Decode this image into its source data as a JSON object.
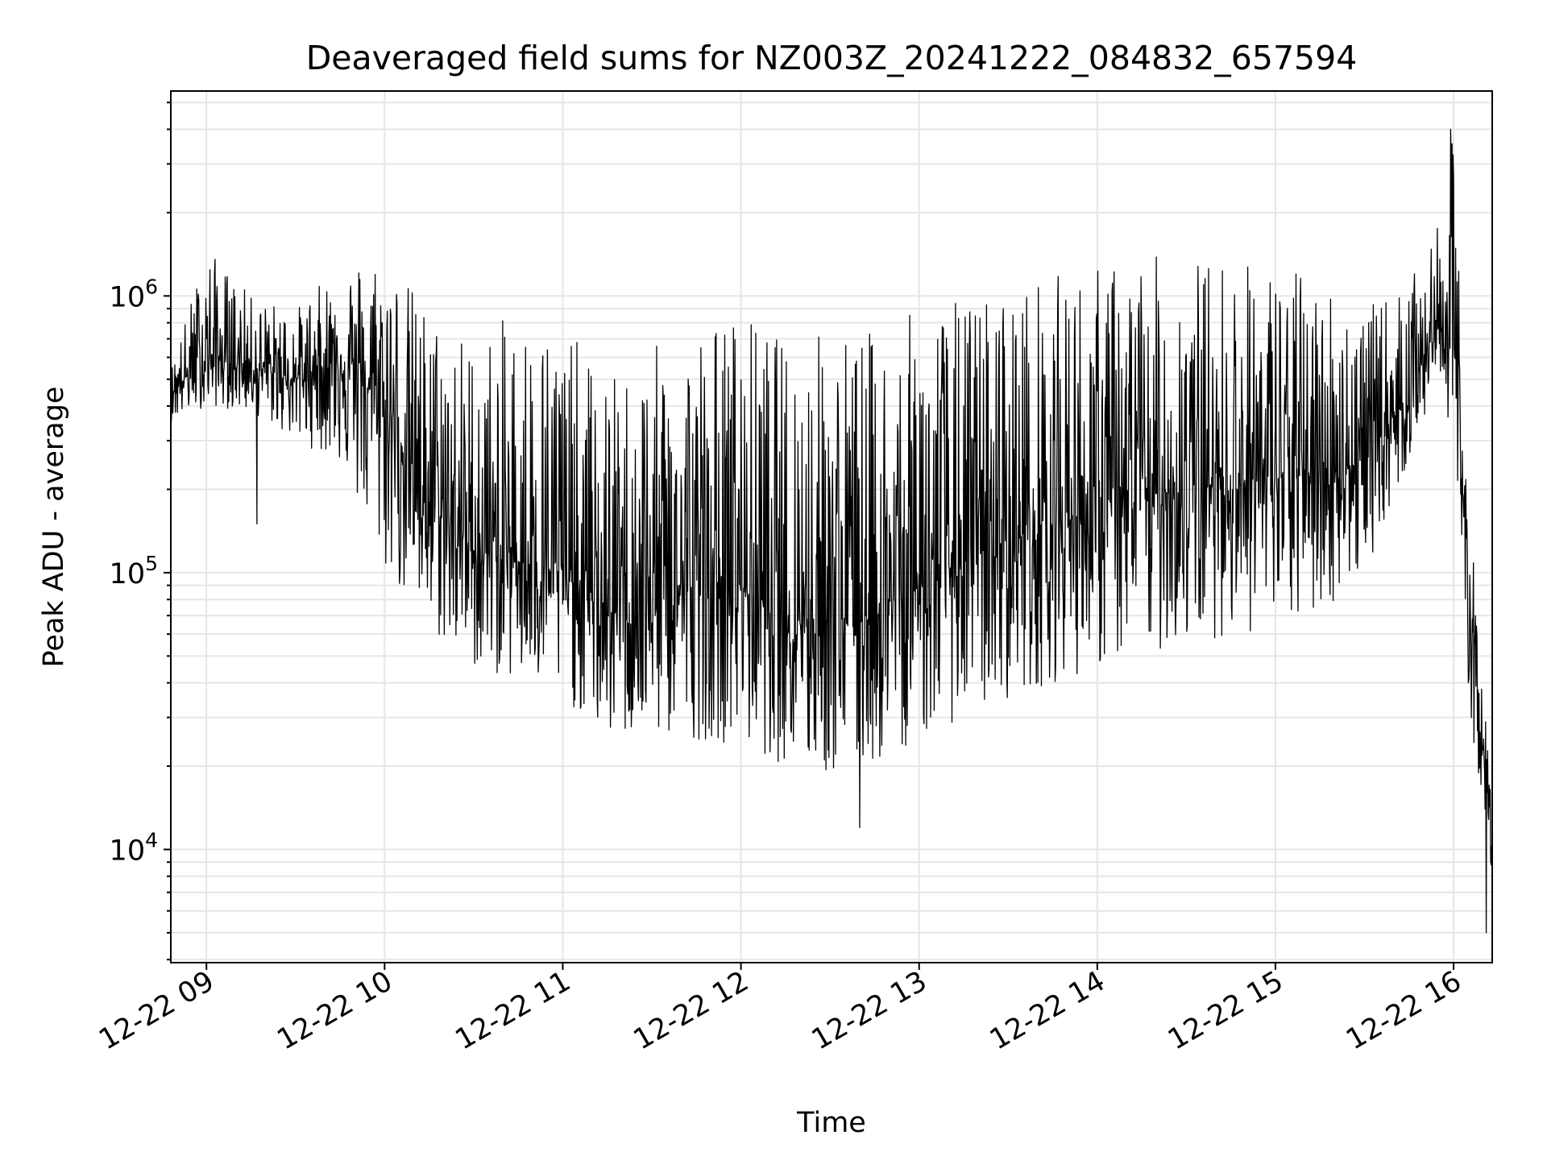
{
  "chart_data": {
    "type": "line",
    "title": "Deaveraged field sums for NZ003Z_20241222_084832_657594",
    "xlabel": "Time",
    "ylabel": "Peak ADU - average",
    "yscale": "log",
    "grid": true,
    "color": "#000000",
    "grid_color": "#e6e6e6",
    "xlim": [
      "2024-12-22 08:48",
      "2024-12-22 16:13"
    ],
    "ylim": [
      3900,
      5500000
    ],
    "x_ticks": [
      {
        "value": "2024-12-22 09:00",
        "label": "12-22 09"
      },
      {
        "value": "2024-12-22 10:00",
        "label": "12-22 10"
      },
      {
        "value": "2024-12-22 11:00",
        "label": "12-22 11"
      },
      {
        "value": "2024-12-22 12:00",
        "label": "12-22 12"
      },
      {
        "value": "2024-12-22 13:00",
        "label": "12-22 13"
      },
      {
        "value": "2024-12-22 14:00",
        "label": "12-22 14"
      },
      {
        "value": "2024-12-22 15:00",
        "label": "12-22 15"
      },
      {
        "value": "2024-12-22 16:00",
        "label": "12-22 16"
      }
    ],
    "y_ticks": [
      {
        "value": 10000,
        "base": "10",
        "exp": "4"
      },
      {
        "value": 100000,
        "base": "10",
        "exp": "5"
      },
      {
        "value": 1000000,
        "base": "10",
        "exp": "6"
      }
    ],
    "series": [
      {
        "x": [
          "2024-12-22 08:48",
          "2024-12-22 09:00",
          "2024-12-22 09:15",
          "2024-12-22 09:30",
          "2024-12-22 09:45",
          "2024-12-22 10:00",
          "2024-12-22 10:15",
          "2024-12-22 10:30",
          "2024-12-22 10:45",
          "2024-12-22 11:00",
          "2024-12-22 11:15",
          "2024-12-22 11:30",
          "2024-12-22 11:45",
          "2024-12-22 12:00",
          "2024-12-22 12:15",
          "2024-12-22 12:30",
          "2024-12-22 12:45",
          "2024-12-22 13:00",
          "2024-12-22 13:15",
          "2024-12-22 13:30",
          "2024-12-22 13:45",
          "2024-12-22 14:00",
          "2024-12-22 14:15",
          "2024-12-22 14:30",
          "2024-12-22 14:45",
          "2024-12-22 15:00",
          "2024-12-22 15:15",
          "2024-12-22 15:30",
          "2024-12-22 15:45",
          "2024-12-22 15:55",
          "2024-12-22 16:00",
          "2024-12-22 16:05",
          "2024-12-22 16:10",
          "2024-12-22 16:13"
        ],
        "y_low": [
          350000,
          400000,
          380000,
          300000,
          250000,
          100000,
          60000,
          45000,
          40000,
          35000,
          25000,
          25000,
          25000,
          24000,
          20000,
          18000,
          20000,
          25000,
          30000,
          35000,
          40000,
          45000,
          50000,
          55000,
          60000,
          60000,
          70000,
          100000,
          250000,
          500000,
          300000,
          30000,
          15000,
          8000
        ],
        "y_high": [
          550000,
          1500000,
          1000000,
          900000,
          1300000,
          1500000,
          900000,
          700000,
          900000,
          800000,
          500000,
          650000,
          800000,
          900000,
          700000,
          800000,
          750000,
          900000,
          1000000,
          1100000,
          1200000,
          1300000,
          1400000,
          1400000,
          1400000,
          1300000,
          1200000,
          900000,
          1100000,
          1800000,
          4000000,
          200000,
          35000,
          20000
        ],
        "y_mid": [
          450000,
          600000,
          550000,
          500000,
          600000,
          400000,
          180000,
          120000,
          110000,
          100000,
          70000,
          80000,
          90000,
          90000,
          70000,
          70000,
          70000,
          90000,
          110000,
          130000,
          150000,
          170000,
          190000,
          200000,
          210000,
          220000,
          230000,
          250000,
          450000,
          800000,
          700000,
          90000,
          22000,
          9000
        ]
      }
    ],
    "notable_points": [
      {
        "x": "2024-12-22 09:17",
        "y": 150000
      },
      {
        "x": "2024-12-22 12:40",
        "y": 12000
      },
      {
        "x": "2024-12-22 15:59",
        "y": 4000000
      },
      {
        "x": "2024-12-22 16:11",
        "y": 5000
      }
    ]
  }
}
